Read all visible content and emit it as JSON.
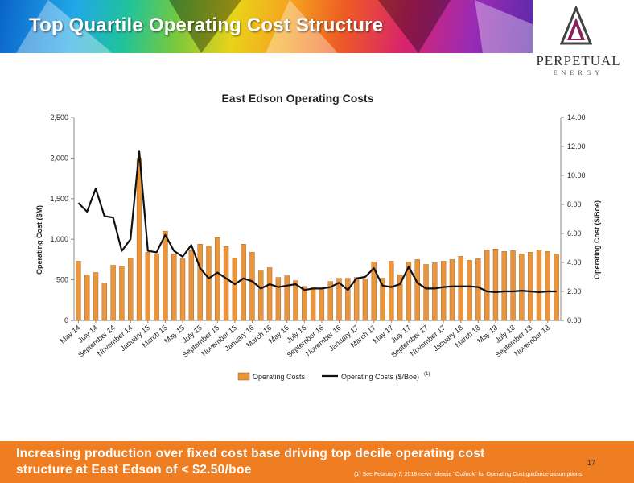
{
  "header": {
    "title": "Top Quartile Operating Cost Structure",
    "logo_name": "PERPETUAL",
    "logo_sub": "ENERGY"
  },
  "footer": {
    "message": "Increasing production over fixed cost base driving top decile operating cost structure at East Edson of < $2.50/boe",
    "page_number": "17",
    "footnote": "(1) See February 7, 2018 news release \"Outlook\" for Operating Cost guidance assumptions"
  },
  "colors": {
    "bar": "#E8953E",
    "bar_stroke": "#9a5a1a",
    "line": "#111111",
    "footer": "#EF7D22"
  },
  "chart_data": {
    "type": "bar",
    "title": "East Edson Operating Costs",
    "ylabel": "Operating Cost ($M)",
    "y2label": "Operating Cost ($/Boe)",
    "ylim": [
      0,
      2500
    ],
    "y2lim": [
      0,
      14
    ],
    "yticks": [
      "0",
      "500",
      "1,000",
      "1,500",
      "2,000",
      "2,500"
    ],
    "y2ticks": [
      "0.00",
      "2.00",
      "4.00",
      "6.00",
      "8.00",
      "10.00",
      "12.00",
      "14.00"
    ],
    "grid": false,
    "legend_position": "bottom",
    "categories": [
      "May 14",
      "Jun 14",
      "July 14",
      "Aug 14",
      "September 14",
      "Oct 14",
      "November 14",
      "Dec 14",
      "January 15",
      "Feb 15",
      "March 15",
      "Apr 15",
      "May 15",
      "Jun 15",
      "July 15",
      "Aug 15",
      "September 15",
      "Oct 15",
      "November 15",
      "Dec 15",
      "January 16",
      "Feb 16",
      "March 16",
      "Apr 16",
      "May 16",
      "Jun 16",
      "July 16",
      "Aug 16",
      "September 16",
      "Oct 16",
      "November 16",
      "Dec 16",
      "January 17",
      "Feb 17",
      "March 17",
      "Apr 17",
      "May 17",
      "Jun 17",
      "July 17",
      "Aug 17",
      "September 17",
      "Oct 17",
      "November 17",
      "Dec 17",
      "January 18",
      "Feb 18",
      "March 18",
      "Apr 18",
      "May 18",
      "Jun 18",
      "July 18",
      "Aug 18",
      "September 18",
      "Oct 18",
      "November 18",
      "Dec 18"
    ],
    "tick_labels": [
      "May 14",
      "July 14",
      "September 14",
      "November 14",
      "January 15",
      "March 15",
      "May 15",
      "July 15",
      "September 15",
      "November 15",
      "January 16",
      "March 16",
      "May 16",
      "July 16",
      "September 16",
      "November 16",
      "January 17",
      "March 17",
      "May 17",
      "July 17",
      "September 17",
      "November 17",
      "January 18",
      "March 18",
      "May 18",
      "July 18",
      "September 18",
      "November 18"
    ],
    "series": [
      {
        "name": "Operating Costs",
        "type": "bar",
        "axis": "left",
        "values": [
          730,
          560,
          590,
          460,
          680,
          670,
          770,
          2000,
          840,
          820,
          1100,
          820,
          760,
          860,
          940,
          920,
          1020,
          910,
          770,
          940,
          840,
          610,
          650,
          530,
          550,
          490,
          420,
          410,
          400,
          480,
          520,
          520,
          530,
          510,
          720,
          520,
          730,
          560,
          720,
          750,
          690,
          710,
          730,
          750,
          790,
          740,
          760,
          870,
          880,
          850,
          860,
          820,
          840,
          870,
          850,
          820
        ]
      },
      {
        "name": "Operating Costs ($/Boe)",
        "type": "line",
        "axis": "right",
        "values": [
          8.1,
          7.5,
          9.1,
          7.2,
          7.1,
          4.8,
          5.6,
          11.7,
          4.8,
          4.7,
          5.9,
          4.8,
          4.4,
          5.2,
          3.6,
          2.9,
          3.3,
          2.9,
          2.5,
          2.9,
          2.7,
          2.2,
          2.5,
          2.3,
          2.4,
          2.5,
          2.1,
          2.2,
          2.2,
          2.3,
          2.6,
          2.1,
          2.9,
          3.0,
          3.6,
          2.4,
          2.3,
          2.5,
          3.7,
          2.6,
          2.2,
          2.2,
          2.3,
          2.35,
          2.35,
          2.35,
          2.3,
          2.0,
          1.95,
          2.0,
          2.0,
          2.05,
          2.0,
          1.95,
          2.0,
          2.0
        ]
      }
    ],
    "legend_note": "(1)"
  }
}
